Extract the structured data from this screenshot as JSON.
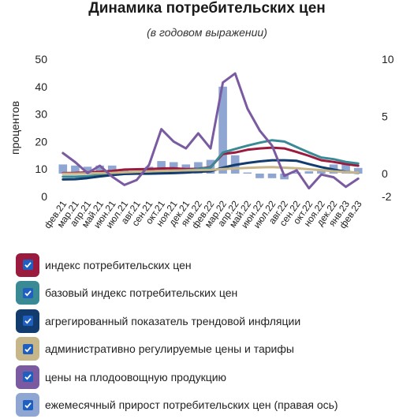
{
  "chart_data": {
    "type": "line",
    "title": "Динамика потребительских цен",
    "subtitle": "(в годовом выражении)",
    "ylabel": "процентов",
    "ylim": [
      0,
      50
    ],
    "y2lim": [
      -2,
      10
    ],
    "yticks": [
      0,
      10,
      20,
      30,
      40,
      50
    ],
    "y2ticks": [
      -2,
      0,
      5,
      10
    ],
    "categories": [
      "фев.21",
      "мар.21",
      "апр.21",
      "май.21",
      "июн.21",
      "июл.21",
      "авг.21",
      "сен.21",
      "окт.21",
      "ноя.21",
      "дек.21",
      "янв.22",
      "фев.22",
      "мар.22",
      "апр.22",
      "май.22",
      "июн.22",
      "июл.22",
      "авг.22",
      "сен.22",
      "окт.22",
      "ноя.22",
      "дек.22",
      "янв.23",
      "фев.23"
    ],
    "series": [
      {
        "name": "индекс потребительских цен",
        "axis": "left",
        "color": "#9b1b3f",
        "values": [
          8.5,
          8.6,
          8.8,
          9.0,
          9.3,
          9.8,
          9.9,
          10.0,
          10.2,
          10.3,
          10.0,
          10.1,
          10.7,
          15.5,
          16.0,
          17.0,
          17.5,
          17.8,
          17.5,
          16.2,
          14.8,
          13.2,
          12.6,
          11.8,
          11.2
        ]
      },
      {
        "name": "базовый индекс потребительских цен",
        "axis": "left",
        "color": "#3a8a95",
        "values": [
          7.2,
          7.2,
          7.4,
          7.8,
          8.2,
          8.5,
          8.7,
          8.9,
          9.2,
          9.4,
          9.5,
          10.0,
          10.5,
          16.0,
          17.3,
          18.5,
          19.6,
          20.5,
          20.0,
          18.0,
          16.0,
          14.2,
          13.6,
          12.6,
          12.0
        ]
      },
      {
        "name": "агрегированный показатель трендовой инфляции",
        "axis": "left",
        "color": "#123c6e",
        "values": [
          6.2,
          6.3,
          6.7,
          7.3,
          7.8,
          8.2,
          8.3,
          8.3,
          8.4,
          8.5,
          8.7,
          9.0,
          9.2,
          10.5,
          11.5,
          12.2,
          12.8,
          13.2,
          13.2,
          13.0,
          11.8,
          10.7,
          9.8,
          9.0,
          8.6
        ]
      },
      {
        "name": "административно регулируемые цены и тарифы",
        "axis": "left",
        "color": "#c8b68b",
        "values": [
          8.3,
          8.3,
          8.4,
          8.5,
          8.6,
          8.8,
          9.0,
          9.1,
          9.3,
          9.4,
          9.5,
          9.6,
          9.7,
          10.0,
          10.2,
          10.4,
          10.6,
          10.7,
          10.5,
          10.3,
          9.9,
          9.6,
          9.2,
          8.9,
          8.7
        ]
      },
      {
        "name": "цены на плодоовощную продукцию",
        "axis": "left",
        "color": "#7a5aa0",
        "values": [
          15.8,
          12.5,
          8.5,
          11.2,
          7.2,
          4.2,
          6.0,
          11.5,
          24.5,
          20.0,
          17.5,
          23.0,
          17.5,
          41.5,
          44.8,
          32.0,
          24.0,
          18.5,
          7.5,
          9.5,
          3.0,
          8.0,
          7.0,
          3.5,
          6.5
        ]
      }
    ],
    "bars": {
      "name": "ежемесячный прирост потребительских цен (правая ось)",
      "axis": "right",
      "color": "#8fa6d3",
      "values": [
        0.8,
        0.7,
        0.6,
        0.7,
        0.7,
        0.3,
        0.2,
        0.6,
        1.1,
        1.0,
        0.8,
        1.0,
        1.2,
        7.6,
        1.6,
        0.1,
        -0.4,
        -0.4,
        -0.5,
        0.1,
        0.2,
        0.4,
        0.8,
        0.8,
        0.5
      ]
    }
  },
  "legend": [
    {
      "label": "индекс потребительских цен",
      "color": "#9b1b3f"
    },
    {
      "label": "базовый индекс потребительских цен",
      "color": "#3a8a95"
    },
    {
      "label": "агрегированный показатель трендовой инфляции",
      "color": "#123c6e"
    },
    {
      "label": "административно регулируемые цены и тарифы",
      "color": "#c8b68b"
    },
    {
      "label": "цены на плодоовощную продукцию",
      "color": "#7a5aa0"
    },
    {
      "label": "ежемесячный прирост потребительских цен (правая ось)",
      "color": "#8fa6d3"
    }
  ]
}
